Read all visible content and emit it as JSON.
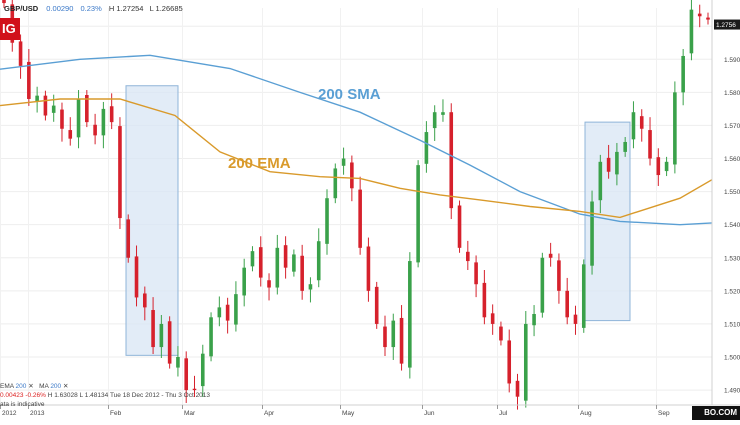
{
  "header": {
    "symbol": "GBP/USD",
    "change": "0.00290",
    "change_pct": "0.23%",
    "high": "H 1.27254",
    "low": "L 1.26685"
  },
  "logo_text": "IG",
  "indicators": {
    "ema_label": "EMA",
    "ema_period": "200",
    "ma_label": "MA",
    "ma_period": "200",
    "line1_values": "0.00423",
    "line1_pct": "-0.26%",
    "line1_h": "H 1.63028",
    "line1_l": "L 1.48134",
    "line1_range": "Tue 18 Dec 2012 - Thu 3 Oct 2013",
    "line2": "ata is indicative"
  },
  "annotations": {
    "sma": "200 SMA",
    "ema": "200 EMA"
  },
  "watermark": "BO.COM",
  "colors": {
    "bull": "#3aa14a",
    "bear": "#d6212c",
    "sma": "#5a9fd4",
    "ema": "#d99a2b",
    "box_fill": "#d8e6f4",
    "box_stroke": "#8fb4d8",
    "price_tag": "#1a1a1a"
  },
  "chart_data": {
    "type": "candlestick",
    "title": "GBP/USD",
    "y_ticks": [
      "1.6000",
      "1.5900",
      "1.5800",
      "1.5700",
      "1.5600",
      "1.5500",
      "1.5400",
      "1.5300",
      "1.5200",
      "1.5100",
      "1.5000",
      "1.4900"
    ],
    "x_ticks": [
      "2012",
      "2013",
      "Feb",
      "Mar",
      "Apr",
      "May",
      "Jun",
      "Jul",
      "Aug",
      "Sep"
    ],
    "last_price": "1.2756",
    "ylim": [
      1.487,
      1.6055
    ],
    "candles_anchor_closes": [
      1.607,
      1.595,
      1.588,
      1.578,
      1.579,
      1.573,
      1.576,
      1.569,
      1.566,
      1.578,
      1.571,
      1.567,
      1.575,
      1.571,
      1.542,
      1.53,
      1.518,
      1.515,
      1.503,
      1.51,
      1.498,
      1.5,
      1.49,
      1.49,
      1.501,
      1.512,
      1.515,
      1.511,
      1.519,
      1.527,
      1.532,
      1.524,
      1.521,
      1.533,
      1.527,
      1.531,
      1.52,
      1.522,
      1.535,
      1.548,
      1.557,
      1.56,
      1.551,
      1.533,
      1.52,
      1.51,
      1.503,
      1.511,
      1.498,
      1.529,
      1.558,
      1.568,
      1.574,
      1.574,
      1.545,
      1.533,
      1.529,
      1.522,
      1.512,
      1.51,
      1.505,
      1.492,
      1.488,
      1.51,
      1.513,
      1.53,
      1.53,
      1.52,
      1.512,
      1.51,
      1.528,
      1.547,
      1.559,
      1.556,
      1.562,
      1.565,
      1.574,
      1.569,
      1.56,
      1.555,
      1.559,
      1.58,
      1.591,
      1.605,
      1.603,
      1.602
    ],
    "sma200": [
      [
        0,
        1.587
      ],
      [
        80,
        1.59
      ],
      [
        150,
        1.5912
      ],
      [
        230,
        1.5872
      ],
      [
        300,
        1.58
      ],
      [
        360,
        1.574
      ],
      [
        420,
        1.5655
      ],
      [
        470,
        1.558
      ],
      [
        520,
        1.55
      ],
      [
        580,
        1.5432
      ],
      [
        620,
        1.541
      ],
      [
        680,
        1.54
      ],
      [
        740,
        1.541
      ]
    ],
    "ema200": [
      [
        0,
        1.576
      ],
      [
        60,
        1.578
      ],
      [
        120,
        1.578
      ],
      [
        175,
        1.573
      ],
      [
        220,
        1.562
      ],
      [
        270,
        1.556
      ],
      [
        320,
        1.5545
      ],
      [
        360,
        1.554
      ],
      [
        400,
        1.551
      ],
      [
        440,
        1.549
      ],
      [
        480,
        1.5475
      ],
      [
        530,
        1.5455
      ],
      [
        580,
        1.544
      ],
      [
        620,
        1.5422
      ],
      [
        680,
        1.548
      ],
      [
        740,
        1.5585
      ]
    ],
    "highlight_ranges": [
      {
        "x_from": "Jan 29",
        "x_to": "Feb 28",
        "y_from": 1.582,
        "y_to": 1.5005
      },
      {
        "x_from": "Jul 29",
        "x_to": "Aug 18",
        "y_from": 1.571,
        "y_to": 1.511
      }
    ],
    "series": [
      {
        "name": "200 SMA"
      },
      {
        "name": "200 EMA"
      }
    ]
  }
}
